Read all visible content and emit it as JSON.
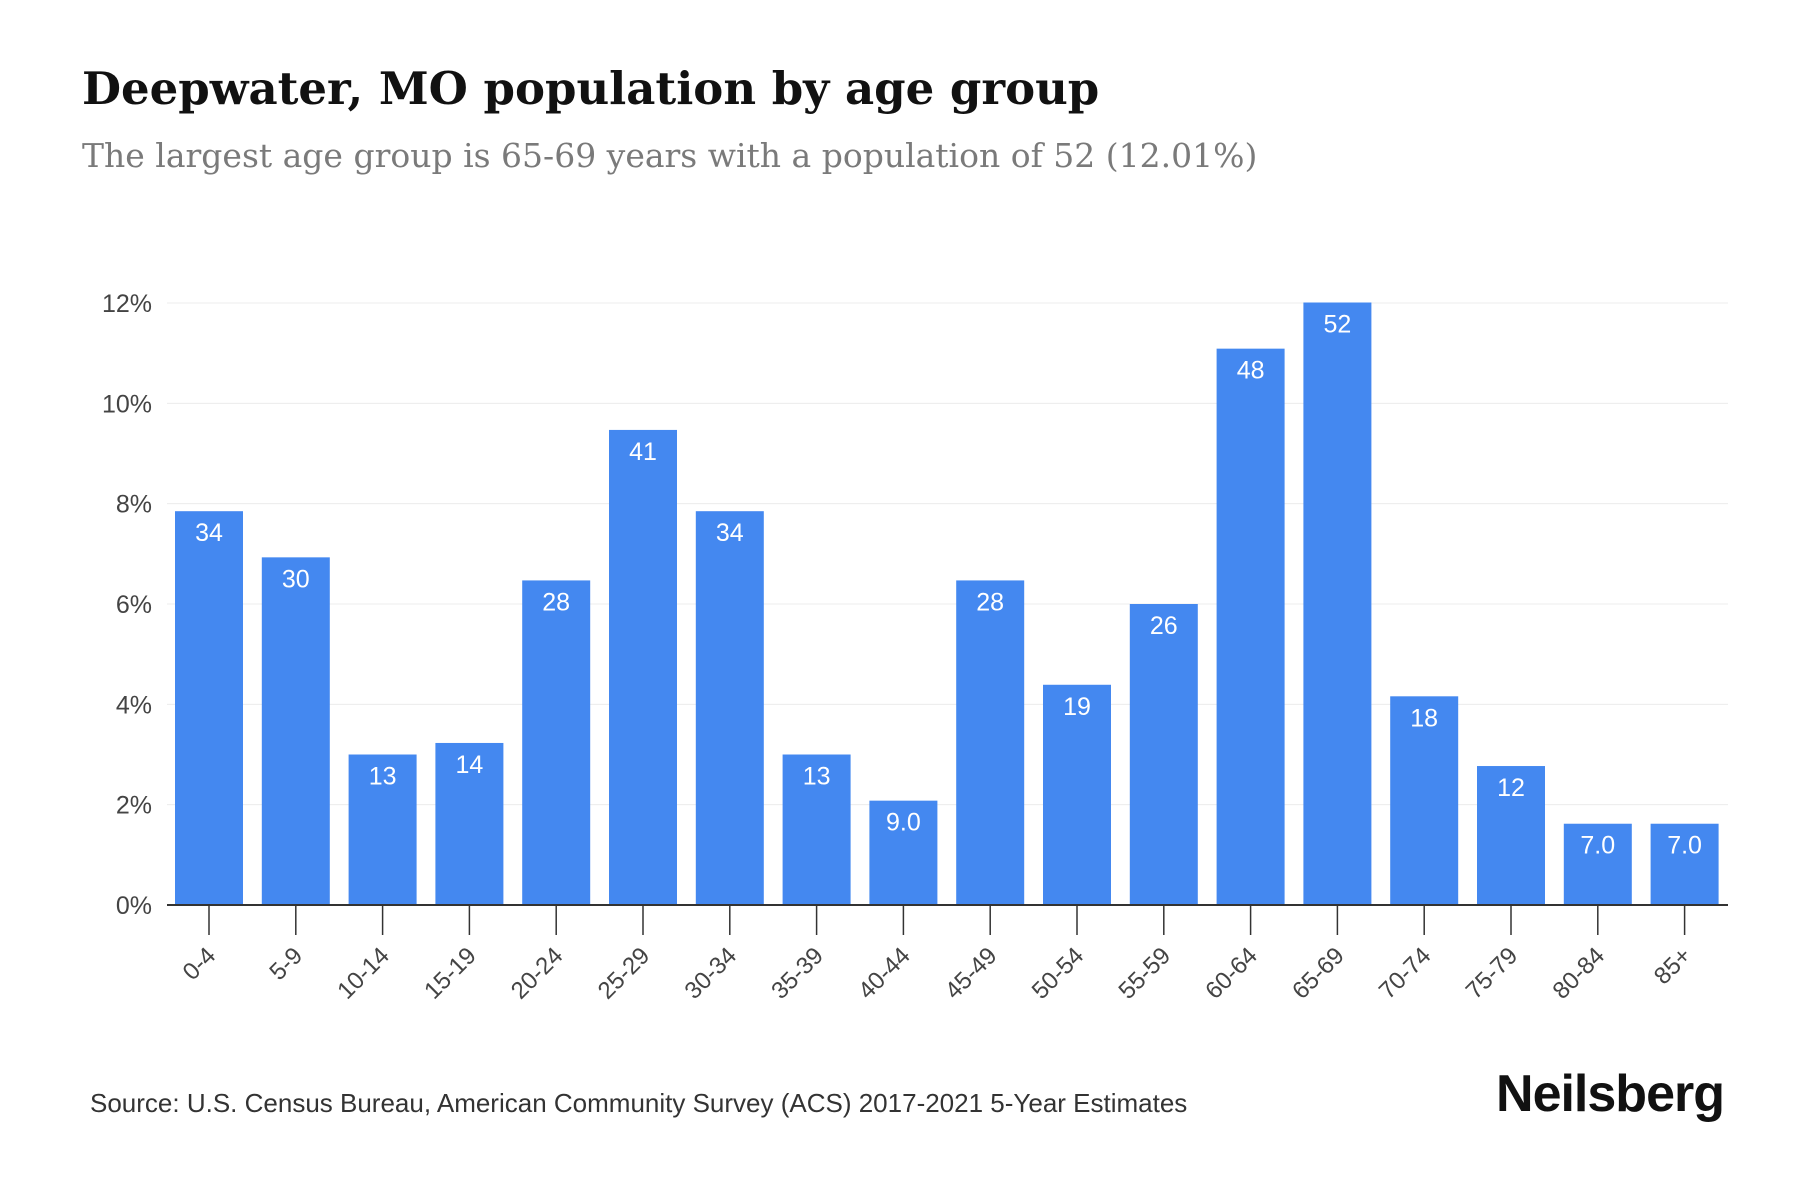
{
  "header": {
    "title": "Deepwater, MO population by age group",
    "subtitle": "The largest age group is 65-69 years with a population of 52 (12.01%)"
  },
  "footer": {
    "source": "Source: U.S. Census Bureau, American Community Survey (ACS) 2017-2021 5-Year Estimates",
    "brand": "Neilsberg"
  },
  "colors": {
    "bar": "#4488F0",
    "bar_label": "#ffffff",
    "grid": "#ececec",
    "axis": "#333333",
    "tick_text": "#444444"
  },
  "chart_data": {
    "type": "bar",
    "title": "Deepwater, MO population by age group",
    "subtitle": "The largest age group is 65-69 years with a population of 52 (12.01%)",
    "xlabel": "",
    "ylabel": "",
    "categories": [
      "0-4",
      "5-9",
      "10-14",
      "15-19",
      "20-24",
      "25-29",
      "30-34",
      "35-39",
      "40-44",
      "45-49",
      "50-54",
      "55-59",
      "60-64",
      "65-69",
      "70-74",
      "75-79",
      "80-84",
      "85+"
    ],
    "values": [
      7.85,
      6.93,
      3.0,
      3.23,
      6.47,
      9.47,
      7.85,
      3.0,
      2.08,
      6.47,
      4.39,
      6.0,
      11.09,
      12.01,
      4.16,
      2.77,
      1.62,
      1.62
    ],
    "data_labels": [
      "34",
      "30",
      "13",
      "14",
      "28",
      "41",
      "34",
      "13",
      "9.0",
      "28",
      "19",
      "26",
      "48",
      "52",
      "18",
      "12",
      "7.0",
      "7.0"
    ],
    "y_ticks": [
      0,
      2,
      4,
      6,
      8,
      10,
      12
    ],
    "y_tick_labels": [
      "0%",
      "2%",
      "4%",
      "6%",
      "8%",
      "10%",
      "12%"
    ],
    "ylim": [
      0,
      12
    ],
    "grid": true,
    "legend": "none"
  }
}
